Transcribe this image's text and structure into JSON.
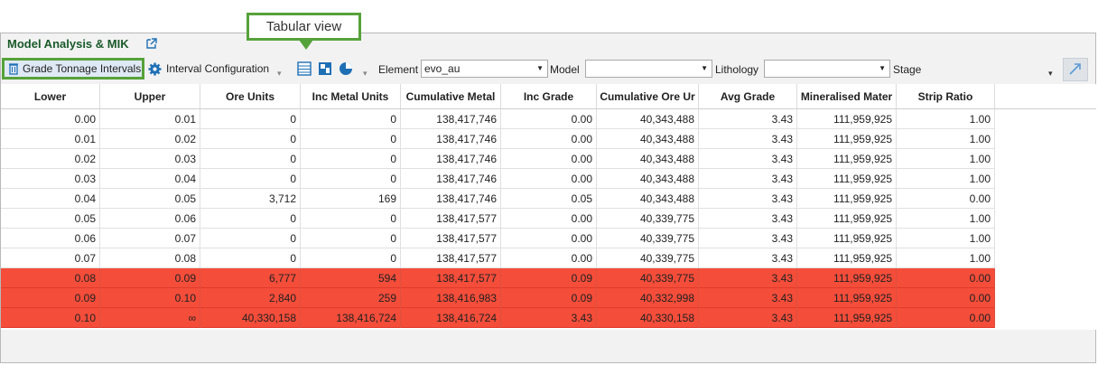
{
  "panel": {
    "title": "Model Analysis & MIK"
  },
  "callout": {
    "text": "Tabular view"
  },
  "toolbar": {
    "grade_tonnage_label": "Grade Tonnage Intervals",
    "interval_config_label": "Interval Configuration",
    "element_label": "Element",
    "element_value": "evo_au",
    "model_label": "Model",
    "model_value": "",
    "lithology_label": "Lithology",
    "lithology_value": "",
    "stage_label": "Stage"
  },
  "table": {
    "columns": [
      "Lower",
      "Upper",
      "Ore Units",
      "Inc Metal Units",
      "Cumulative Metal",
      "Inc Grade",
      "Cumulative Ore Ur",
      "Avg Grade",
      "Mineralised Mater",
      "Strip Ratio"
    ],
    "rows": [
      [
        "0.00",
        "0.01",
        "0",
        "0",
        "138,417,746",
        "0.00",
        "40,343,488",
        "3.43",
        "111,959,925",
        "1.00"
      ],
      [
        "0.01",
        "0.02",
        "0",
        "0",
        "138,417,746",
        "0.00",
        "40,343,488",
        "3.43",
        "111,959,925",
        "1.00"
      ],
      [
        "0.02",
        "0.03",
        "0",
        "0",
        "138,417,746",
        "0.00",
        "40,343,488",
        "3.43",
        "111,959,925",
        "1.00"
      ],
      [
        "0.03",
        "0.04",
        "0",
        "0",
        "138,417,746",
        "0.00",
        "40,343,488",
        "3.43",
        "111,959,925",
        "1.00"
      ],
      [
        "0.04",
        "0.05",
        "3,712",
        "169",
        "138,417,746",
        "0.05",
        "40,343,488",
        "3.43",
        "111,959,925",
        "0.00"
      ],
      [
        "0.05",
        "0.06",
        "0",
        "0",
        "138,417,577",
        "0.00",
        "40,339,775",
        "3.43",
        "111,959,925",
        "1.00"
      ],
      [
        "0.06",
        "0.07",
        "0",
        "0",
        "138,417,577",
        "0.00",
        "40,339,775",
        "3.43",
        "111,959,925",
        "1.00"
      ],
      [
        "0.07",
        "0.08",
        "0",
        "0",
        "138,417,577",
        "0.00",
        "40,339,775",
        "3.43",
        "111,959,925",
        "1.00"
      ],
      [
        "0.08",
        "0.09",
        "6,777",
        "594",
        "138,417,577",
        "0.09",
        "40,339,775",
        "3.43",
        "111,959,925",
        "0.00"
      ],
      [
        "0.09",
        "0.10",
        "2,840",
        "259",
        "138,416,983",
        "0.09",
        "40,332,998",
        "3.43",
        "111,959,925",
        "0.00"
      ],
      [
        "0.10",
        "∞",
        "40,330,158",
        "138,416,724",
        "138,416,724",
        "3.43",
        "40,330,158",
        "3.43",
        "111,959,925",
        "0.00"
      ]
    ],
    "highlighted_rows": [
      8,
      9,
      10
    ]
  },
  "colors": {
    "accent": "#56a23a",
    "highlight": "#f44d3a",
    "title": "#1a5a2a",
    "icon": "#1f6fb5"
  }
}
